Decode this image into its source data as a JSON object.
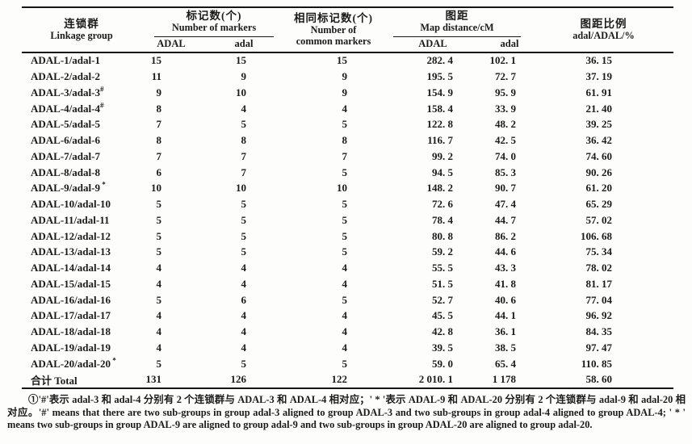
{
  "table": {
    "header": {
      "col_linkage": {
        "zh": "连锁群",
        "en": "Linkage group"
      },
      "col_markers": {
        "zh": "标记数(个)",
        "en": "Number of markers"
      },
      "col_common": {
        "zh": "相同标记数(个)",
        "en1": "Number of",
        "en2": "common markers"
      },
      "col_distance": {
        "zh": "图距",
        "en": "Map distance/cM"
      },
      "col_ratio": {
        "zh": "图距比例",
        "en": "adal/ADAL/%"
      },
      "sub_ADAL": "ADAL",
      "sub_adal": "adal"
    },
    "rows": [
      {
        "group": "ADAL-1/adal-1",
        "mark": "",
        "markers_ADAL": "15",
        "markers_adal": "15",
        "common": "15",
        "dist_ADAL": "282. 4",
        "dist_adal": "102. 1",
        "ratio": "36. 15"
      },
      {
        "group": "ADAL-2/adal-2",
        "mark": "",
        "markers_ADAL": "11",
        "markers_adal": "9",
        "common": "9",
        "dist_ADAL": "195. 5",
        "dist_adal": "72. 7",
        "ratio": "37. 19"
      },
      {
        "group": "ADAL-3/adal-3",
        "mark": "#",
        "markers_ADAL": "9",
        "markers_adal": "10",
        "common": "9",
        "dist_ADAL": "154. 9",
        "dist_adal": "95. 9",
        "ratio": "61. 91"
      },
      {
        "group": "ADAL-4/adal-4",
        "mark": "#",
        "markers_ADAL": "8",
        "markers_adal": "4",
        "common": "4",
        "dist_ADAL": "158. 4",
        "dist_adal": "33. 9",
        "ratio": "21. 40"
      },
      {
        "group": "ADAL-5/adal-5",
        "mark": "",
        "markers_ADAL": "7",
        "markers_adal": "5",
        "common": "5",
        "dist_ADAL": "122. 8",
        "dist_adal": "48. 2",
        "ratio": "39. 25"
      },
      {
        "group": "ADAL-6/adal-6",
        "mark": "",
        "markers_ADAL": "8",
        "markers_adal": "8",
        "common": "8",
        "dist_ADAL": "116. 7",
        "dist_adal": "42. 5",
        "ratio": "36. 42"
      },
      {
        "group": "ADAL-7/adal-7",
        "mark": "",
        "markers_ADAL": "7",
        "markers_adal": "7",
        "common": "7",
        "dist_ADAL": "99. 2",
        "dist_adal": "74. 0",
        "ratio": "74. 60"
      },
      {
        "group": "ADAL-8/adal-8",
        "mark": "",
        "markers_ADAL": "6",
        "markers_adal": "7",
        "common": "5",
        "dist_ADAL": "94. 5",
        "dist_adal": "85. 3",
        "ratio": "90. 26"
      },
      {
        "group": "ADAL-9/adal-9",
        "mark": "*",
        "markers_ADAL": "10",
        "markers_adal": "10",
        "common": "10",
        "dist_ADAL": "148. 2",
        "dist_adal": "90. 7",
        "ratio": "61. 20"
      },
      {
        "group": "ADAL-10/adal-10",
        "mark": "",
        "markers_ADAL": "5",
        "markers_adal": "5",
        "common": "5",
        "dist_ADAL": "72. 6",
        "dist_adal": "47. 4",
        "ratio": "65. 29"
      },
      {
        "group": "ADAL-11/adal-11",
        "mark": "",
        "markers_ADAL": "5",
        "markers_adal": "5",
        "common": "5",
        "dist_ADAL": "78. 4",
        "dist_adal": "44. 7",
        "ratio": "57. 02"
      },
      {
        "group": "ADAL-12/adal-12",
        "mark": "",
        "markers_ADAL": "5",
        "markers_adal": "5",
        "common": "5",
        "dist_ADAL": "80. 8",
        "dist_adal": "86. 2",
        "ratio": "106. 68"
      },
      {
        "group": "ADAL-13/adal-13",
        "mark": "",
        "markers_ADAL": "5",
        "markers_adal": "5",
        "common": "5",
        "dist_ADAL": "59. 2",
        "dist_adal": "44. 6",
        "ratio": "75. 34"
      },
      {
        "group": "ADAL-14/adal-14",
        "mark": "",
        "markers_ADAL": "4",
        "markers_adal": "4",
        "common": "4",
        "dist_ADAL": "55. 5",
        "dist_adal": "43. 3",
        "ratio": "78. 02"
      },
      {
        "group": "ADAL-15/adal-15",
        "mark": "",
        "markers_ADAL": "4",
        "markers_adal": "4",
        "common": "4",
        "dist_ADAL": "51. 5",
        "dist_adal": "41. 8",
        "ratio": "81. 17"
      },
      {
        "group": "ADAL-16/adal-16",
        "mark": "",
        "markers_ADAL": "5",
        "markers_adal": "6",
        "common": "5",
        "dist_ADAL": "52. 7",
        "dist_adal": "40. 6",
        "ratio": "77. 04"
      },
      {
        "group": "ADAL-17/adal-17",
        "mark": "",
        "markers_ADAL": "4",
        "markers_adal": "4",
        "common": "4",
        "dist_ADAL": "45. 5",
        "dist_adal": "44. 1",
        "ratio": "96. 92"
      },
      {
        "group": "ADAL-18/adal-18",
        "mark": "",
        "markers_ADAL": "4",
        "markers_adal": "4",
        "common": "4",
        "dist_ADAL": "42. 8",
        "dist_adal": "36. 1",
        "ratio": "84. 35"
      },
      {
        "group": "ADAL-19/adal-19",
        "mark": "",
        "markers_ADAL": "4",
        "markers_adal": "4",
        "common": "4",
        "dist_ADAL": "39. 5",
        "dist_adal": "38. 5",
        "ratio": "97. 47"
      },
      {
        "group": "ADAL-20/adal-20",
        "mark": "*",
        "markers_ADAL": "5",
        "markers_adal": "5",
        "common": "5",
        "dist_ADAL": "59. 0",
        "dist_adal": "65. 4",
        "ratio": "110. 85"
      }
    ],
    "total": {
      "group": "合计 Total",
      "mark": "",
      "markers_ADAL": "131",
      "markers_adal": "126",
      "common": "122",
      "dist_ADAL": "2 010. 1",
      "dist_adal": "1 178",
      "ratio": "58. 60"
    }
  },
  "footnote": "①'#'表示 adal-3 和 adal-4 分别有 2 个连锁群与 ADAL-3 和 ADAL-4 相对应；' * '表示 ADAL-9 和 ADAL-20 分别有 2 个连锁群与 adal-9 和 adal-20 相对应。'#' means that there are two sub-groups in group adal-3 aligned to group ADAL-3 and two sub-groups in group adal-4 aligned to group ADAL-4; ' * ' means two sub-groups in group ADAL-9 are aligned to group adal-9 and two sub-groups in group ADAL-20 are aligned to group adal-20."
}
